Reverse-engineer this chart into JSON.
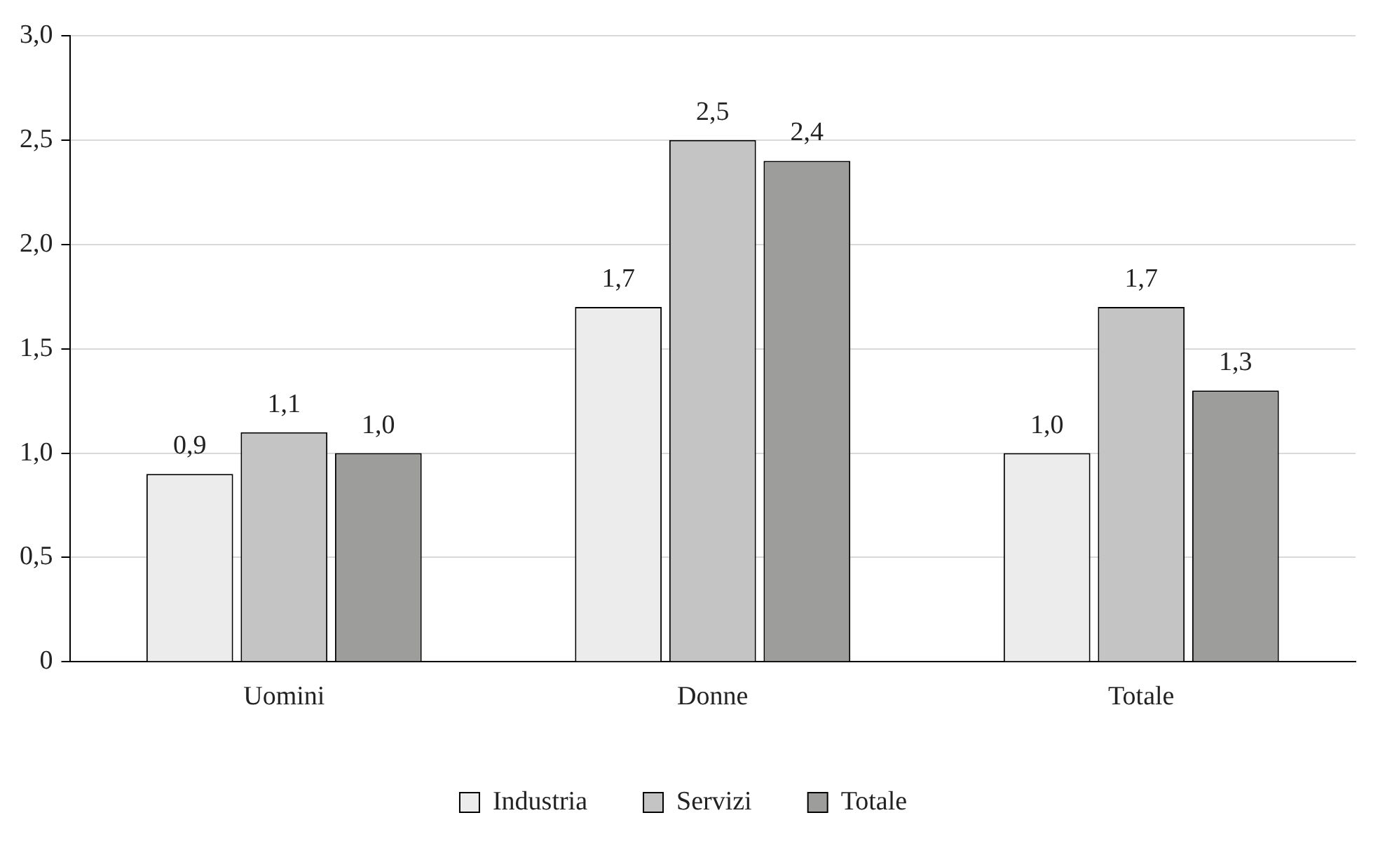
{
  "chart_data": {
    "type": "bar",
    "categories": [
      "Uomini",
      "Donne",
      "Totale"
    ],
    "series": [
      {
        "name": "Industria",
        "color": "#ececec",
        "values": [
          0.9,
          1.7,
          1.0
        ],
        "value_labels": [
          "0,9",
          "1,7",
          "1,0"
        ]
      },
      {
        "name": "Servizi",
        "color": "#c4c4c4",
        "values": [
          1.1,
          2.5,
          1.7
        ],
        "value_labels": [
          "1,1",
          "2,5",
          "1,7"
        ]
      },
      {
        "name": "Totale",
        "color": "#9d9d9c",
        "values": [
          1.0,
          2.4,
          1.3
        ],
        "value_labels": [
          "1,0",
          "2,4",
          "1,3"
        ]
      }
    ],
    "ylim": [
      0,
      3
    ],
    "yticks": [
      0,
      {
        "value": 0.5,
        "label": "0,5"
      },
      {
        "value": 1,
        "label": "1,0"
      },
      {
        "value": 1.5,
        "label": "1,5"
      },
      {
        "value": 2,
        "label": "2,0"
      },
      {
        "value": 2.5,
        "label": "2,5"
      },
      {
        "value": 3,
        "label": "3,0"
      }
    ],
    "grid": "y",
    "legend": "bottom"
  }
}
